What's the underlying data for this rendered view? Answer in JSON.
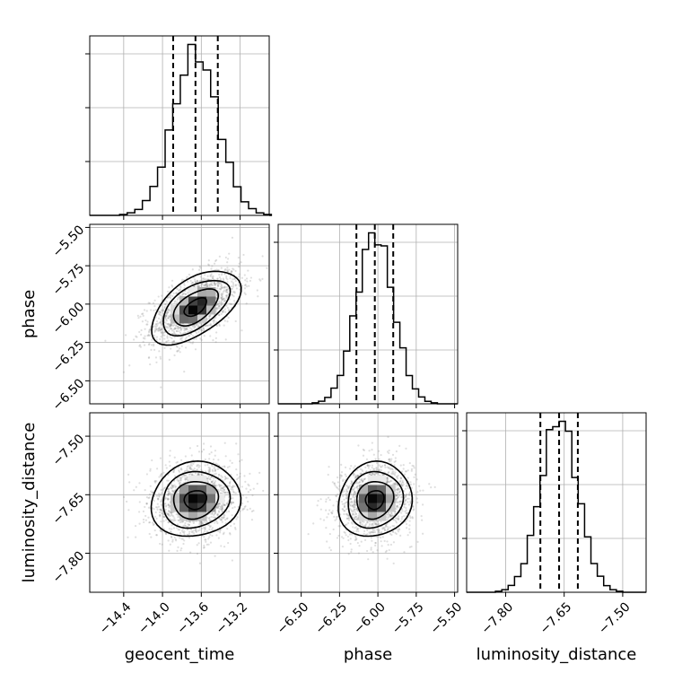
{
  "chart_data": {
    "type": "corner",
    "parameters": [
      {
        "name": "geocent_time",
        "ticks": [
          -14.4,
          -14.0,
          -13.6,
          -13.2
        ],
        "tick_labels": [
          "−14.4",
          "−14.0",
          "−13.6",
          "−13.2"
        ],
        "range": [
          -14.75,
          -12.9
        ],
        "mean": -13.66,
        "std": 0.23,
        "quantiles": [
          -13.89,
          -13.66,
          -13.43
        ]
      },
      {
        "name": "phase",
        "ticks": [
          -6.5,
          -6.25,
          -6.0,
          -5.75,
          -5.5
        ],
        "tick_labels": [
          "−6.50",
          "−6.25",
          "−6.00",
          "−5.75",
          "−5.50"
        ],
        "range": [
          -6.65,
          -5.48
        ],
        "mean": -6.02,
        "std": 0.12,
        "quantiles": [
          -6.14,
          -6.02,
          -5.9
        ]
      },
      {
        "name": "luminosity_distance",
        "ticks": [
          -7.8,
          -7.65,
          -7.5
        ],
        "tick_labels": [
          "−7.80",
          "−7.65",
          "−7.50"
        ],
        "range": [
          -7.9,
          -7.44
        ],
        "mean": -7.663,
        "std": 0.048,
        "quantiles": [
          -7.711,
          -7.663,
          -7.615
        ]
      }
    ],
    "correlations": [
      {
        "pair": [
          "geocent_time",
          "phase"
        ],
        "rho": 0.55
      },
      {
        "pair": [
          "geocent_time",
          "luminosity_distance"
        ],
        "rho": 0.1
      },
      {
        "pair": [
          "phase",
          "luminosity_distance"
        ],
        "rho": 0.1
      }
    ],
    "hist_bins": 20,
    "contour_levels_sigma": [
      0.5,
      1.0,
      1.5,
      2.0
    ],
    "quantile_line_style": "dashed",
    "grid": true,
    "legend": "none"
  },
  "colors": {
    "axes": "#000000",
    "grid": "#b0b0b0",
    "scatter": "#7f7f7f",
    "density_dark": "#000000"
  }
}
